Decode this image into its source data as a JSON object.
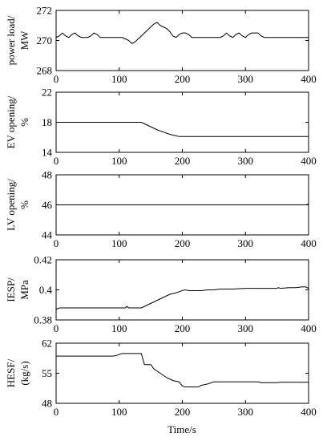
{
  "xlabel": "Time/s",
  "chart_data": [
    {
      "type": "line",
      "ylabel": [
        "power load/",
        "MW"
      ],
      "xlim": [
        0,
        400
      ],
      "ylim": [
        268,
        272
      ],
      "xticks": [
        0,
        100,
        200,
        300,
        400
      ],
      "yticks": [
        268,
        270,
        272
      ],
      "series": [
        {
          "x": [
            0,
            5,
            10,
            15,
            20,
            25,
            30,
            35,
            40,
            45,
            50,
            55,
            60,
            65,
            70,
            80,
            90,
            100,
            105,
            110,
            115,
            120,
            125,
            130,
            135,
            140,
            145,
            150,
            155,
            160,
            165,
            170,
            175,
            180,
            185,
            190,
            195,
            200,
            205,
            210,
            215,
            220,
            230,
            240,
            250,
            260,
            265,
            270,
            275,
            280,
            285,
            290,
            295,
            300,
            305,
            310,
            315,
            320,
            325,
            330,
            335,
            340,
            360,
            380,
            400
          ],
          "y": [
            270.2,
            270.3,
            270.5,
            270.3,
            270.2,
            270.4,
            270.5,
            270.3,
            270.2,
            270.2,
            270.2,
            270.3,
            270.5,
            270.4,
            270.2,
            270.2,
            270.2,
            270.2,
            270.2,
            270.1,
            270.0,
            269.8,
            269.9,
            270.1,
            270.3,
            270.5,
            270.7,
            270.9,
            271.1,
            271.2,
            271.0,
            270.9,
            270.8,
            270.6,
            270.3,
            270.2,
            270.4,
            270.5,
            270.5,
            270.4,
            270.2,
            270.2,
            270.2,
            270.2,
            270.2,
            270.2,
            270.3,
            270.5,
            270.3,
            270.2,
            270.4,
            270.5,
            270.3,
            270.2,
            270.4,
            270.5,
            270.5,
            270.5,
            270.3,
            270.2,
            270.2,
            270.2,
            270.2,
            270.2,
            270.2
          ]
        }
      ]
    },
    {
      "type": "line",
      "ylabel": [
        "EV opening/",
        "%"
      ],
      "xlim": [
        0,
        400
      ],
      "ylim": [
        14,
        22
      ],
      "xticks": [
        0,
        100,
        200,
        300,
        400
      ],
      "yticks": [
        14,
        18,
        22
      ],
      "series": [
        {
          "x": [
            0,
            135,
            140,
            150,
            160,
            170,
            180,
            190,
            195,
            400
          ],
          "y": [
            18.0,
            18.0,
            17.8,
            17.4,
            17.0,
            16.7,
            16.4,
            16.2,
            16.1,
            16.1
          ]
        }
      ]
    },
    {
      "type": "line",
      "ylabel": [
        "LV opening/",
        "%"
      ],
      "xlim": [
        0,
        400
      ],
      "ylim": [
        44,
        48
      ],
      "xticks": [
        0,
        100,
        200,
        300,
        400
      ],
      "yticks": [
        44,
        46,
        48
      ],
      "series": [
        {
          "x": [
            0,
            100,
            200,
            300,
            395,
            400
          ],
          "y": [
            46.0,
            46.0,
            46.0,
            46.0,
            46.0,
            46.05
          ]
        }
      ]
    },
    {
      "type": "line",
      "ylabel": [
        "IESP/",
        "MPa"
      ],
      "xlim": [
        0,
        400
      ],
      "ylim": [
        0.38,
        0.42
      ],
      "xticks": [
        0,
        100,
        200,
        300,
        400
      ],
      "yticks": [
        0.38,
        0.4,
        0.42
      ],
      "series": [
        {
          "x": [
            0,
            5,
            50,
            100,
            110,
            112,
            115,
            135,
            140,
            150,
            160,
            170,
            180,
            190,
            200,
            205,
            210,
            220,
            230,
            240,
            250,
            260,
            280,
            300,
            320,
            340,
            350,
            352,
            355,
            370,
            380,
            390,
            395,
            400
          ],
          "y": [
            0.387,
            0.388,
            0.388,
            0.388,
            0.388,
            0.389,
            0.388,
            0.388,
            0.389,
            0.391,
            0.393,
            0.395,
            0.397,
            0.398,
            0.3995,
            0.4,
            0.3995,
            0.3995,
            0.3995,
            0.4,
            0.4,
            0.4005,
            0.4005,
            0.401,
            0.401,
            0.401,
            0.401,
            0.4015,
            0.401,
            0.4015,
            0.4015,
            0.402,
            0.402,
            0.401
          ]
        }
      ]
    },
    {
      "type": "line",
      "ylabel": [
        "HESF/",
        "(kg/s)"
      ],
      "xlim": [
        0,
        400
      ],
      "ylim": [
        48,
        62
      ],
      "xticks": [
        0,
        100,
        200,
        300,
        400
      ],
      "yticks": [
        48,
        55,
        62
      ],
      "series": [
        {
          "x": [
            0,
            90,
            95,
            100,
            105,
            135,
            140,
            150,
            155,
            165,
            175,
            185,
            195,
            200,
            205,
            225,
            230,
            240,
            250,
            260,
            300,
            320,
            325,
            350,
            355,
            400
          ],
          "y": [
            59.0,
            59.0,
            59.1,
            59.4,
            59.6,
            59.6,
            57.0,
            57.0,
            56.0,
            55.0,
            54.0,
            53.3,
            53.0,
            52.0,
            51.8,
            51.8,
            52.2,
            52.5,
            53.0,
            53.0,
            53.0,
            53.0,
            52.8,
            52.8,
            52.9,
            52.9
          ]
        }
      ]
    }
  ]
}
